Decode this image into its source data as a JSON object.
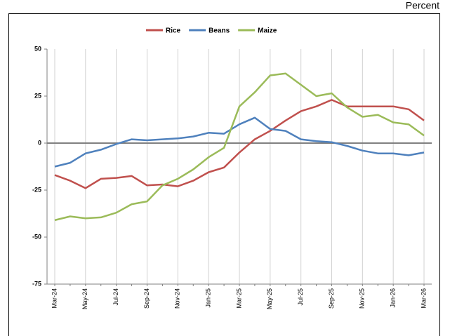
{
  "chart_data": {
    "type": "line",
    "unit_label": "Percent",
    "categories": [
      "Mar-24",
      null,
      "May-24",
      null,
      "Jul-24",
      null,
      "Sep-24",
      null,
      "Nov-24",
      null,
      "Jan-25",
      null,
      "Mar-25",
      null,
      "May-25",
      null,
      "Jul-25",
      null,
      "Sep-25",
      null,
      "Nov-25",
      null,
      "Jan-26",
      null,
      "Mar-26"
    ],
    "series": [
      {
        "name": "Rice",
        "color": "#c0504d",
        "values": [
          -17,
          -20,
          -24,
          -19,
          -18.5,
          -17.5,
          -22.5,
          -22,
          -23,
          -20,
          -15.5,
          -13,
          -5,
          2,
          6.5,
          12,
          17,
          19.5,
          23,
          19.5,
          19.5,
          19.5,
          19.5,
          18,
          12
        ]
      },
      {
        "name": "Beans",
        "color": "#4f81bd",
        "values": [
          -12.5,
          -10.5,
          -5.5,
          -3.5,
          -0.5,
          2,
          1.5,
          2,
          2.5,
          3.5,
          5.5,
          5,
          10,
          13.5,
          7.5,
          6.5,
          2,
          1,
          0.5,
          -1.5,
          -4,
          -5.5,
          -5.5,
          -6.5,
          -5
        ]
      },
      {
        "name": "Maize",
        "color": "#9bbb59",
        "values": [
          -41,
          -39,
          -40,
          -39.5,
          -37,
          -32.5,
          -31,
          -22.5,
          -19,
          -14,
          -7.5,
          -2.5,
          19.5,
          27,
          36,
          37,
          31,
          25,
          26.5,
          19,
          14,
          15,
          11,
          10,
          4
        ]
      }
    ],
    "ylim": [
      -75,
      50
    ],
    "yticks": [
      -75,
      -50,
      -25,
      0,
      25,
      50
    ],
    "grid": true
  }
}
